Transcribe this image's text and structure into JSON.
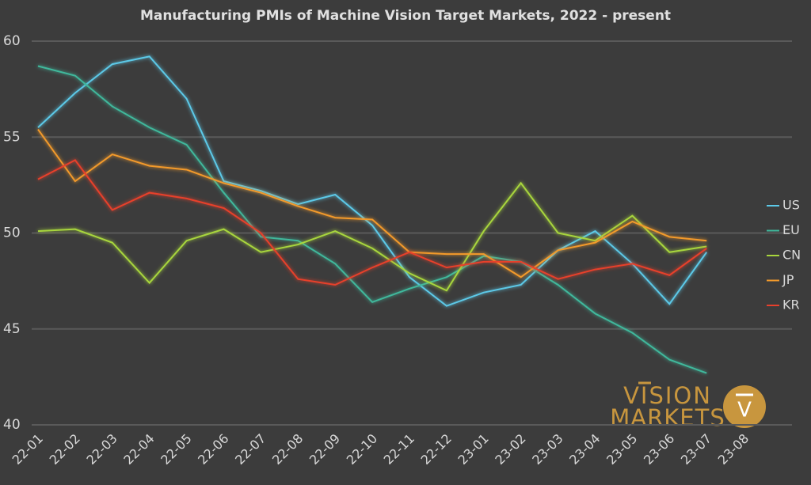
{
  "chart_data": {
    "type": "line",
    "title": "Manufacturing PMIs of Machine Vision Target Markets, 2022 - present",
    "categories": [
      "22-01",
      "22-02",
      "22-03",
      "22-04",
      "22-05",
      "22-06",
      "22-07",
      "22-08",
      "22-09",
      "22-10",
      "22-11",
      "22-12",
      "23-01",
      "23-02",
      "23-03",
      "23-04",
      "23-05",
      "23-06",
      "23-07",
      "23-08"
    ],
    "series": [
      {
        "name": "US",
        "color": "#5cc9e8",
        "values": [
          55.5,
          57.3,
          58.8,
          59.2,
          57.0,
          52.7,
          52.2,
          51.5,
          52.0,
          50.4,
          47.7,
          46.2,
          46.9,
          47.3,
          49.1,
          50.1,
          48.4,
          46.3,
          49.0,
          null
        ]
      },
      {
        "name": "EU",
        "color": "#3fb89c",
        "values": [
          58.7,
          58.2,
          56.6,
          55.5,
          54.6,
          52.1,
          49.8,
          49.6,
          48.4,
          46.4,
          47.1,
          47.7,
          48.8,
          48.5,
          47.3,
          45.8,
          44.8,
          43.4,
          42.7,
          null
        ]
      },
      {
        "name": "CN",
        "color": "#a8d63c",
        "values": [
          50.1,
          50.2,
          49.5,
          47.4,
          49.6,
          50.2,
          49.0,
          49.4,
          50.1,
          49.2,
          47.9,
          47.0,
          50.1,
          52.6,
          50.0,
          49.6,
          50.9,
          49.0,
          49.3,
          null
        ]
      },
      {
        "name": "JP",
        "color": "#f39a2b",
        "values": [
          55.4,
          52.7,
          54.1,
          53.5,
          53.3,
          52.6,
          52.1,
          51.4,
          50.8,
          50.7,
          49.0,
          48.9,
          48.9,
          47.7,
          49.1,
          49.5,
          50.6,
          49.8,
          49.6,
          null
        ]
      },
      {
        "name": "KR",
        "color": "#e8402c",
        "values": [
          52.8,
          53.8,
          51.2,
          52.1,
          51.8,
          51.3,
          50.0,
          47.6,
          47.3,
          48.2,
          49.0,
          48.2,
          48.5,
          48.5,
          47.6,
          48.1,
          48.4,
          47.8,
          49.2,
          null
        ]
      }
    ],
    "ylim": [
      40,
      60
    ],
    "yticks": [
      40,
      45,
      50,
      55,
      60
    ],
    "grid": true,
    "legend": "right",
    "logo": {
      "line1": "VISION",
      "line2": "MARKETS",
      "icon": "V"
    }
  }
}
